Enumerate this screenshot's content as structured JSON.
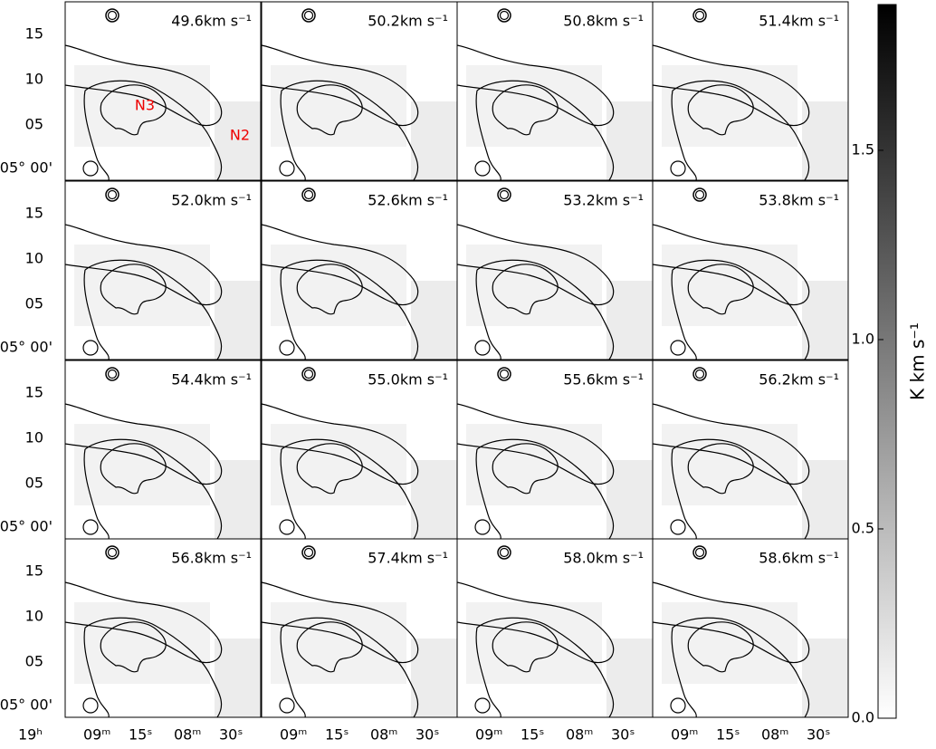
{
  "panels": [
    {
      "label": "49.6km s⁻¹"
    },
    {
      "label": "50.2km s⁻¹"
    },
    {
      "label": "50.8km s⁻¹"
    },
    {
      "label": "51.4km s⁻¹"
    },
    {
      "label": "52.0km s⁻¹"
    },
    {
      "label": "52.6km s⁻¹"
    },
    {
      "label": "53.2km s⁻¹"
    },
    {
      "label": "53.8km s⁻¹"
    },
    {
      "label": "54.4km s⁻¹"
    },
    {
      "label": "55.0km s⁻¹"
    },
    {
      "label": "55.6km s⁻¹"
    },
    {
      "label": "56.2km s⁻¹"
    },
    {
      "label": "56.8km s⁻¹"
    },
    {
      "label": "57.4km s⁻¹"
    },
    {
      "label": "58.0km s⁻¹"
    },
    {
      "label": "58.6km s⁻¹"
    }
  ],
  "region_labels": [
    "N3",
    "N2"
  ],
  "y_tick_labels": [
    "15",
    "10",
    "05",
    "05° 00'"
  ],
  "x_tick_labels": [
    "19ʰ",
    "09ᵐ",
    "15ˢ",
    "08ᵐ",
    "30ˢ"
  ],
  "colorbar": {
    "label": "K km s⁻¹",
    "lim": [
      0,
      1.885
    ],
    "ticks": [
      {
        "value": 0,
        "label": "0.0"
      },
      0.5,
      {
        "value": 1,
        "label": "1.0"
      },
      1.5
    ]
  }
}
